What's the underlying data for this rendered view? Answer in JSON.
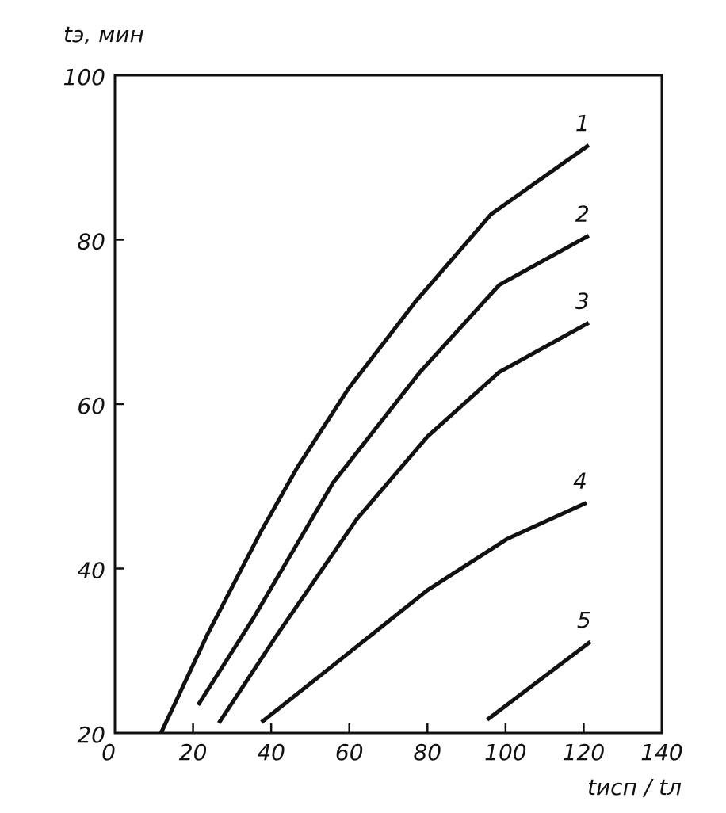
{
  "chart_data": {
    "type": "line",
    "y_label": "tэ, мин",
    "x_label": "tисп / tл",
    "xlim": [
      0,
      140
    ],
    "xticks": [
      0,
      20,
      40,
      60,
      80,
      100,
      120,
      140
    ],
    "ylim": [
      20,
      100
    ],
    "yticks": [
      20,
      40,
      60,
      80,
      100
    ],
    "color": "#111111",
    "series": [
      {
        "name": "1",
        "x": [
          11.8,
          23.7,
          37.5,
          46.7,
          59.8,
          77,
          96.3,
          121.3
        ],
        "values": [
          20,
          32,
          44.6,
          52.3,
          61.9,
          72.5,
          83.1,
          91.5
        ]
      },
      {
        "name": "2",
        "x": [
          21.3,
          35.5,
          55.8,
          78.1,
          98.4,
          121.3
        ],
        "values": [
          23.4,
          34,
          50.4,
          63.9,
          74.5,
          80.5
        ]
      },
      {
        "name": "3",
        "x": [
          26.6,
          41.6,
          61.9,
          80.1,
          98.4,
          121.3
        ],
        "values": [
          21.2,
          32,
          46,
          56.1,
          63.9,
          69.9
        ]
      },
      {
        "name": "4",
        "x": [
          37.5,
          55.8,
          80.1,
          100.4,
          120.7
        ],
        "values": [
          21.3,
          28.2,
          37.4,
          43.6,
          48
        ]
      },
      {
        "name": "5",
        "x": [
          95.3,
          121.7
        ],
        "values": [
          21.6,
          31.1
        ]
      }
    ]
  }
}
